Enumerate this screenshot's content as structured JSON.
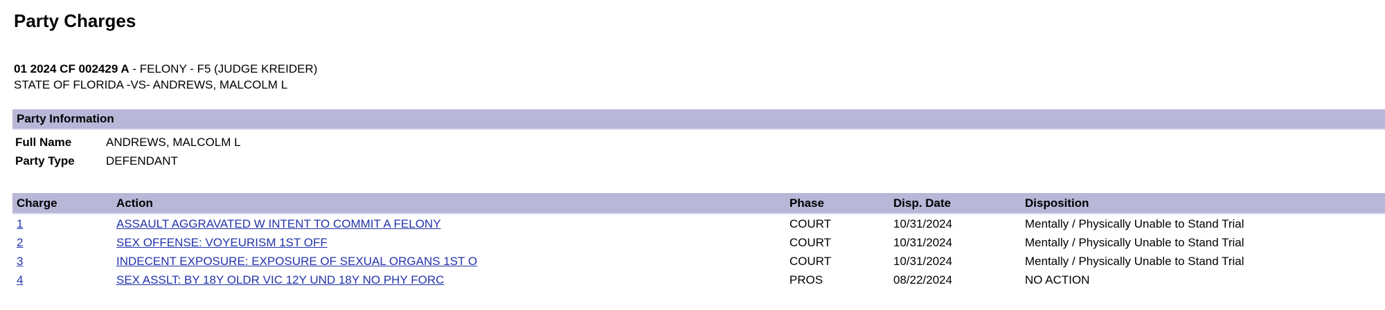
{
  "page": {
    "title": "Party Charges"
  },
  "case_header": {
    "case_number": "01 2024 CF 002429 A",
    "case_descriptor": " - FELONY - F5 (JUDGE KREIDER)",
    "style_of_case": "STATE OF FLORIDA -VS- ANDREWS, MALCOLM L"
  },
  "party_information": {
    "section_title": "Party Information",
    "fields": [
      {
        "label": "Full Name",
        "value": "ANDREWS, MALCOLM L"
      },
      {
        "label": "Party Type",
        "value": "DEFENDANT"
      }
    ]
  },
  "charges_table": {
    "columns": [
      "Charge",
      "Action",
      "Phase",
      "Disp. Date",
      "Disposition"
    ],
    "rows": [
      {
        "charge": "1",
        "action": "ASSAULT AGGRAVATED W INTENT TO COMMIT A FELONY",
        "phase": "COURT",
        "disp_date": "10/31/2024",
        "disposition": "Mentally / Physically Unable to Stand Trial"
      },
      {
        "charge": "2",
        "action": "SEX OFFENSE: VOYEURISM 1ST OFF",
        "phase": "COURT",
        "disp_date": "10/31/2024",
        "disposition": "Mentally / Physically Unable to Stand Trial"
      },
      {
        "charge": "3",
        "action": "INDECENT EXPOSURE: EXPOSURE OF SEXUAL ORGANS 1ST O",
        "phase": "COURT",
        "disp_date": "10/31/2024",
        "disposition": "Mentally / Physically Unable to Stand Trial"
      },
      {
        "charge": "4",
        "action": "SEX ASSLT: BY 18Y OLDR VIC 12Y UND 18Y NO PHY FORC",
        "phase": "PROS",
        "disp_date": "08/22/2024",
        "disposition": "NO ACTION"
      }
    ]
  },
  "colors": {
    "section_bar": "#b8b7d8",
    "link": "#2233aa"
  }
}
